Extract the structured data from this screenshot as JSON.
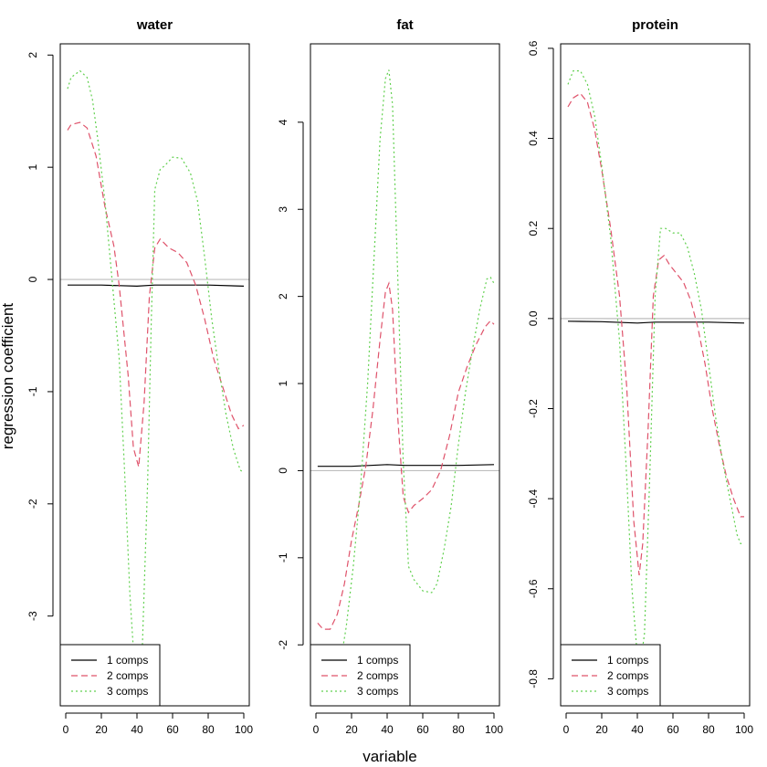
{
  "figure": {
    "ylabel": "regression coefficient",
    "xlabel": "variable"
  },
  "chart_data": [
    {
      "type": "line",
      "title": "water",
      "xlim": [
        0,
        100
      ],
      "ylim": [
        -3.8,
        2.1
      ],
      "xticks": [
        0,
        20,
        40,
        60,
        80,
        100
      ],
      "xtick_labels": [
        "0",
        "20",
        "40",
        "60",
        "80",
        "100"
      ],
      "yticks": [
        -3,
        -2,
        -1,
        0,
        1,
        2
      ],
      "ytick_labels": [
        "-3",
        "-2",
        "-1",
        "0",
        "1",
        "2"
      ],
      "ref_line": 0,
      "legend_position": "bottom-left",
      "series": [
        {
          "name": "1 comps",
          "color": "#000000",
          "dash": "solid",
          "x": [
            1,
            20,
            40,
            50,
            60,
            80,
            100
          ],
          "y": [
            -0.05,
            -0.05,
            -0.06,
            -0.05,
            -0.05,
            -0.05,
            -0.06
          ]
        },
        {
          "name": "2 comps",
          "color": "#DF536B",
          "dash": "dashed",
          "x": [
            1,
            3,
            8,
            12,
            17,
            22,
            27,
            30,
            35,
            38,
            41,
            44,
            47,
            50,
            53,
            58,
            63,
            68,
            73,
            78,
            83,
            88,
            93,
            97,
            100
          ],
          "y": [
            1.33,
            1.38,
            1.4,
            1.35,
            1.1,
            0.65,
            0.3,
            -0.05,
            -0.85,
            -1.5,
            -1.67,
            -1.1,
            -0.15,
            0.28,
            0.36,
            0.28,
            0.24,
            0.15,
            -0.05,
            -0.35,
            -0.7,
            -0.95,
            -1.2,
            -1.33,
            -1.3
          ]
        },
        {
          "name": "3 comps",
          "color": "#61D04F",
          "dash": "dotted",
          "x": [
            1,
            3,
            8,
            12,
            15,
            18,
            22,
            26,
            30,
            33,
            36,
            38,
            40,
            43,
            46,
            48,
            50,
            53,
            56,
            60,
            65,
            70,
            74,
            78,
            82,
            86,
            90,
            94,
            98,
            100
          ],
          "y": [
            1.7,
            1.8,
            1.86,
            1.8,
            1.6,
            1.25,
            0.7,
            0.0,
            -0.7,
            -1.7,
            -2.8,
            -3.3,
            -3.6,
            -3.3,
            -1.8,
            -0.4,
            0.8,
            0.98,
            1.02,
            1.09,
            1.08,
            0.95,
            0.7,
            0.2,
            -0.35,
            -0.8,
            -1.2,
            -1.5,
            -1.7,
            -1.72
          ]
        }
      ]
    },
    {
      "type": "line",
      "title": "fat",
      "xlim": [
        0,
        100
      ],
      "ylim": [
        -2.7,
        4.9
      ],
      "xticks": [
        0,
        20,
        40,
        60,
        80,
        100
      ],
      "xtick_labels": [
        "0",
        "20",
        "40",
        "60",
        "80",
        "100"
      ],
      "yticks": [
        -2,
        -1,
        0,
        1,
        2,
        3,
        4
      ],
      "ytick_labels": [
        "-2",
        "-1",
        "0",
        "1",
        "2",
        "3",
        "4"
      ],
      "ref_line": 0,
      "legend_position": "bottom-left",
      "series": [
        {
          "name": "1 comps",
          "color": "#000000",
          "dash": "solid",
          "x": [
            1,
            20,
            40,
            50,
            60,
            80,
            100
          ],
          "y": [
            0.05,
            0.05,
            0.07,
            0.06,
            0.06,
            0.06,
            0.07
          ]
        },
        {
          "name": "2 comps",
          "color": "#DF536B",
          "dash": "dashed",
          "x": [
            1,
            4,
            8,
            12,
            16,
            20,
            24,
            28,
            32,
            36,
            39,
            41,
            43,
            46,
            49,
            52,
            55,
            60,
            65,
            70,
            75,
            80,
            85,
            90,
            95,
            98,
            100
          ],
          "y": [
            -1.75,
            -1.82,
            -1.82,
            -1.65,
            -1.3,
            -0.8,
            -0.4,
            0.05,
            0.7,
            1.5,
            2.05,
            2.15,
            1.85,
            0.6,
            -0.3,
            -0.48,
            -0.4,
            -0.32,
            -0.22,
            0.0,
            0.4,
            0.9,
            1.2,
            1.45,
            1.65,
            1.72,
            1.68
          ]
        },
        {
          "name": "3 comps",
          "color": "#61D04F",
          "dash": "dotted",
          "x": [
            10,
            13,
            17,
            21,
            25,
            29,
            33,
            36,
            39,
            41,
            43,
            46,
            49,
            52,
            55,
            60,
            65,
            68,
            72,
            76,
            80,
            84,
            88,
            92,
            96,
            98,
            100
          ],
          "y": [
            -2.6,
            -2.3,
            -1.8,
            -1.1,
            -0.2,
            1.0,
            2.6,
            3.8,
            4.5,
            4.6,
            4.2,
            2.2,
            0.1,
            -1.1,
            -1.25,
            -1.38,
            -1.4,
            -1.3,
            -0.9,
            -0.4,
            0.3,
            0.9,
            1.4,
            1.85,
            2.2,
            2.22,
            2.15
          ]
        }
      ]
    },
    {
      "type": "line",
      "title": "protein",
      "xlim": [
        0,
        100
      ],
      "ylim": [
        -0.86,
        0.61
      ],
      "xticks": [
        0,
        20,
        40,
        60,
        80,
        100
      ],
      "xtick_labels": [
        "0",
        "20",
        "40",
        "60",
        "80",
        "100"
      ],
      "yticks": [
        -0.8,
        -0.6,
        -0.4,
        -0.2,
        0.0,
        0.2,
        0.4,
        0.6
      ],
      "ytick_labels": [
        "-0.8",
        "-0.6",
        "-0.4",
        "-0.2",
        "0.0",
        "0.2",
        "0.4",
        "0.6"
      ],
      "ref_line": 0,
      "legend_position": "bottom-left",
      "series": [
        {
          "name": "1 comps",
          "color": "#000000",
          "dash": "solid",
          "x": [
            1,
            20,
            40,
            50,
            60,
            80,
            100
          ],
          "y": [
            -0.006,
            -0.007,
            -0.01,
            -0.008,
            -0.008,
            -0.008,
            -0.01
          ]
        },
        {
          "name": "2 comps",
          "color": "#DF536B",
          "dash": "dashed",
          "x": [
            1,
            4,
            8,
            12,
            16,
            20,
            25,
            30,
            34,
            38,
            41,
            43,
            46,
            49,
            52,
            55,
            58,
            62,
            66,
            70,
            74,
            78,
            82,
            86,
            90,
            94,
            98,
            100
          ],
          "y": [
            0.47,
            0.49,
            0.5,
            0.48,
            0.42,
            0.33,
            0.2,
            0.05,
            -0.15,
            -0.45,
            -0.57,
            -0.5,
            -0.25,
            0.05,
            0.13,
            0.14,
            0.12,
            0.1,
            0.08,
            0.04,
            -0.02,
            -0.1,
            -0.2,
            -0.28,
            -0.35,
            -0.4,
            -0.44,
            -0.44
          ]
        },
        {
          "name": "3 comps",
          "color": "#61D04F",
          "dash": "dotted",
          "x": [
            1,
            4,
            8,
            12,
            16,
            20,
            25,
            30,
            34,
            37,
            40,
            42,
            44,
            47,
            50,
            53,
            56,
            60,
            64,
            68,
            72,
            76,
            80,
            84,
            88,
            92,
            96,
            98,
            100
          ],
          "y": [
            0.52,
            0.55,
            0.55,
            0.52,
            0.45,
            0.34,
            0.18,
            -0.05,
            -0.35,
            -0.6,
            -0.75,
            -0.76,
            -0.7,
            -0.35,
            0.05,
            0.2,
            0.2,
            0.19,
            0.19,
            0.16,
            0.1,
            0.02,
            -0.1,
            -0.22,
            -0.32,
            -0.4,
            -0.48,
            -0.5,
            -0.5
          ]
        }
      ]
    }
  ]
}
